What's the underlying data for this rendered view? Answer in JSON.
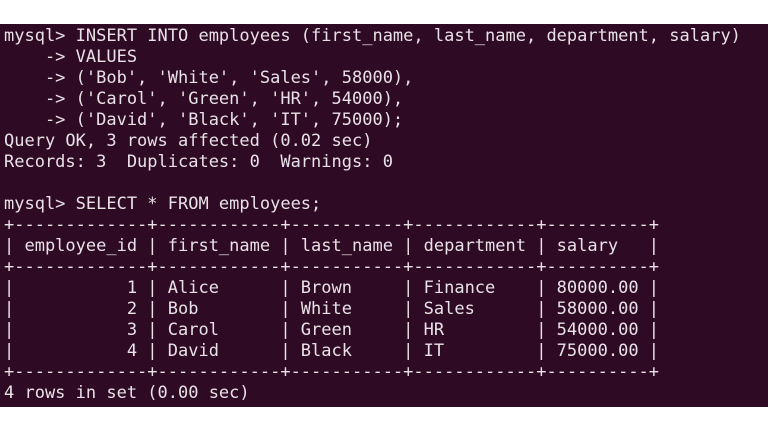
{
  "terminal": {
    "background": "#2f0a25",
    "foreground": "#e8e2e6",
    "pre_lines": [
      "mysql> INSERT INTO employees (first_name, last_name, department, salary)",
      "    -> VALUES",
      "    -> ('Bob', 'White', 'Sales', 58000),",
      "    -> ('Carol', 'Green', 'HR', 54000),",
      "    -> ('David', 'Black', 'IT', 75000);",
      "Query OK, 3 rows affected (0.02 sec)",
      "Records: 3  Duplicates: 0  Warnings: 0",
      "",
      "mysql> SELECT * FROM employees;"
    ],
    "table": {
      "headers": [
        "employee_id",
        "first_name",
        "last_name",
        "department",
        "salary"
      ],
      "right_align": [
        true,
        false,
        false,
        false,
        false
      ],
      "rows": [
        [
          "1",
          "Alice",
          "Brown",
          "Finance",
          "80000.00"
        ],
        [
          "2",
          "Bob",
          "White",
          "Sales",
          "58000.00"
        ],
        [
          "3",
          "Carol",
          "Green",
          "HR",
          "54000.00"
        ],
        [
          "4",
          "David",
          "Black",
          "IT",
          "75000.00"
        ]
      ]
    },
    "post_lines": [
      "4 rows in set (0.00 sec)"
    ]
  }
}
